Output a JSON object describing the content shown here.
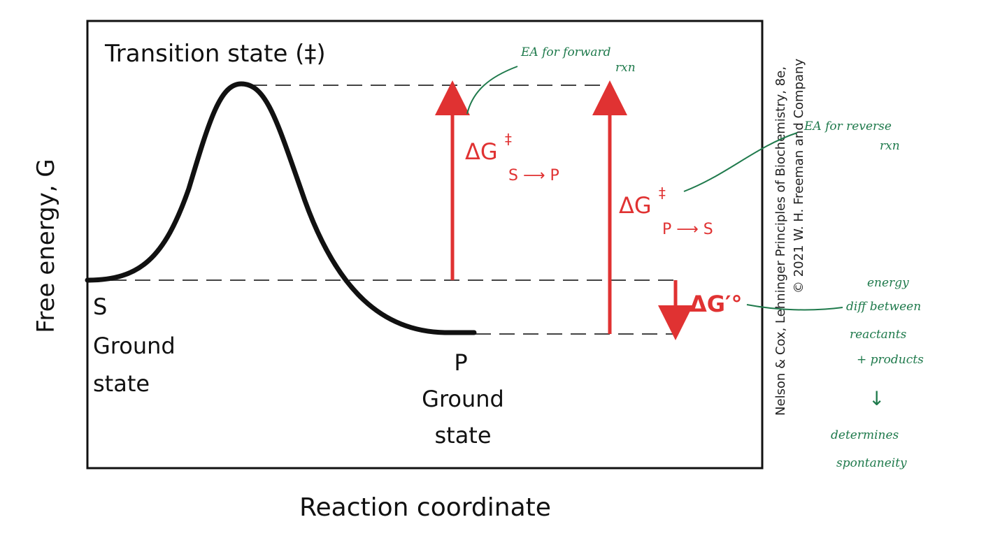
{
  "axes": {
    "y_label": "Free energy, G",
    "x_label": "Reaction coordinate"
  },
  "labels": {
    "transition_state": "Transition state (‡)",
    "s_letter": "S",
    "s_ground": "Ground",
    "s_state": "state",
    "p_letter": "P",
    "p_ground": "Ground",
    "p_state": "state"
  },
  "arrows": {
    "forward": {
      "delta": "ΔG",
      "sup": "‡",
      "sub": "S ⟶ P"
    },
    "reverse": {
      "delta": "ΔG",
      "sup": "‡",
      "sub": "P ⟶ S"
    },
    "standard": {
      "text": "ΔG′°"
    }
  },
  "credit": {
    "line1": "Nelson & Cox, Lehninger Principles of Biochemistry, 8e,",
    "line2": "© 2021 W. H. Freeman and Company"
  },
  "annotations": {
    "forward": {
      "line1": "EA for forward",
      "line2": "rxn"
    },
    "reverse": {
      "line1": "EA for reverse",
      "line2": "rxn"
    },
    "delta_g": {
      "line1": "energy",
      "line2": "diff between",
      "line3": "reactants",
      "line4": "+ products",
      "arrow": "↓",
      "line5": "determines",
      "line6": "spontaneity"
    }
  },
  "colors": {
    "curve": "#111111",
    "arrow": "#e03232",
    "annotation": "#1f7a4c"
  }
}
